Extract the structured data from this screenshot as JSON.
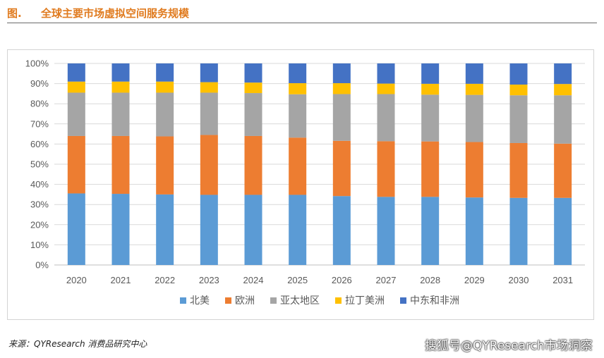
{
  "figure": {
    "label": "图.",
    "title": "全球主要市场虚拟空间服务规模"
  },
  "source_note": "来源：QYResearch 消费品研究中心",
  "watermark": "搜狐号@QYResearch市场洞察",
  "chart_data": {
    "type": "bar",
    "stacked": true,
    "percent": true,
    "categories": [
      "2020",
      "2021",
      "2022",
      "2023",
      "2024",
      "2025",
      "2026",
      "2027",
      "2028",
      "2029",
      "2030",
      "2031"
    ],
    "y_ticks": [
      "0%",
      "10%",
      "20%",
      "30%",
      "40%",
      "50%",
      "60%",
      "70%",
      "80%",
      "90%",
      "100%"
    ],
    "ylim": [
      0,
      100
    ],
    "grid": true,
    "legend_position": "bottom",
    "series": [
      {
        "name": "北美",
        "color": "#5b9bd5",
        "values": [
          35.5,
          35.3,
          35.0,
          34.8,
          34.8,
          34.8,
          34.2,
          33.8,
          33.8,
          33.5,
          33.3,
          33.3
        ]
      },
      {
        "name": "欧洲",
        "color": "#ed7d31",
        "values": [
          28.5,
          28.7,
          28.8,
          29.7,
          29.2,
          28.4,
          27.4,
          27.6,
          27.5,
          27.5,
          27.2,
          26.9
        ]
      },
      {
        "name": "亚太地区",
        "color": "#a5a5a5",
        "values": [
          21.5,
          21.5,
          21.7,
          21.0,
          21.3,
          21.5,
          23.2,
          23.4,
          23.2,
          23.4,
          23.7,
          24.0
        ]
      },
      {
        "name": "拉丁美洲",
        "color": "#ffc000",
        "values": [
          5.5,
          5.5,
          5.5,
          5.2,
          5.2,
          5.5,
          5.4,
          5.2,
          5.4,
          5.5,
          5.3,
          5.6
        ]
      },
      {
        "name": "中东和非洲",
        "color": "#4472c4",
        "values": [
          9.0,
          9.0,
          9.0,
          9.3,
          9.5,
          9.8,
          9.8,
          10.0,
          10.1,
          10.1,
          10.5,
          10.2
        ]
      }
    ]
  }
}
